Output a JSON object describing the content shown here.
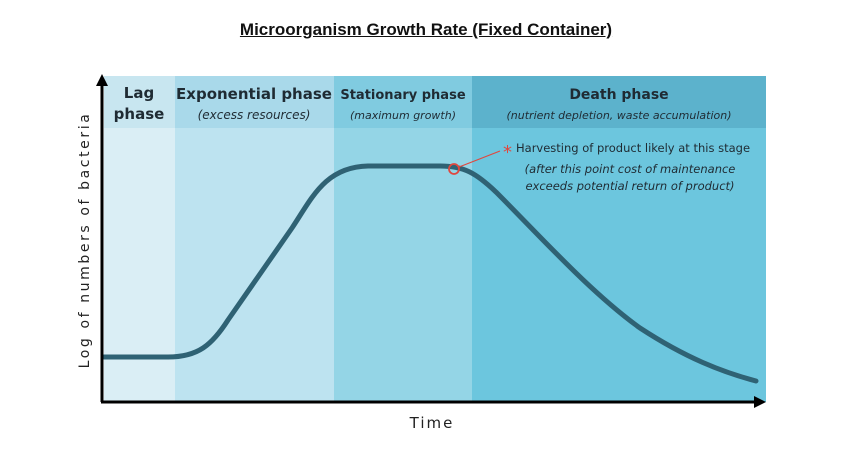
{
  "title": "Microorganism Growth Rate (Fixed Container)",
  "axes": {
    "x_label": "Time",
    "y_label": "Log of numbers of bacteria"
  },
  "phases": [
    {
      "name_line1": "Lag",
      "name_line2": "phase",
      "note": "",
      "color": "#daeef5",
      "header_color": "#c8e6f0"
    },
    {
      "name_line1": "Exponential phase",
      "name_line2": "",
      "note": "(excess resources)",
      "color": "#bde3f0",
      "header_color": "#a9d9ea"
    },
    {
      "name_line1": "Stationary phase",
      "name_line2": "",
      "note": "(maximum growth)",
      "color": "#94d5e6",
      "header_color": "#80cbe0"
    },
    {
      "name_line1": "Death phase",
      "name_line2": "",
      "note": "(nutrient depletion, waste accumulation)",
      "color": "#6cc6de",
      "header_color": "#5cb2cc"
    }
  ],
  "annotation": {
    "marker": "*",
    "line1": "Harvesting of product likely at this stage",
    "line2": "(after this point cost of maintenance",
    "line3": "exceeds potential return of product)",
    "marker_color": "#e0473e"
  },
  "curve_color": "#2f6274"
}
